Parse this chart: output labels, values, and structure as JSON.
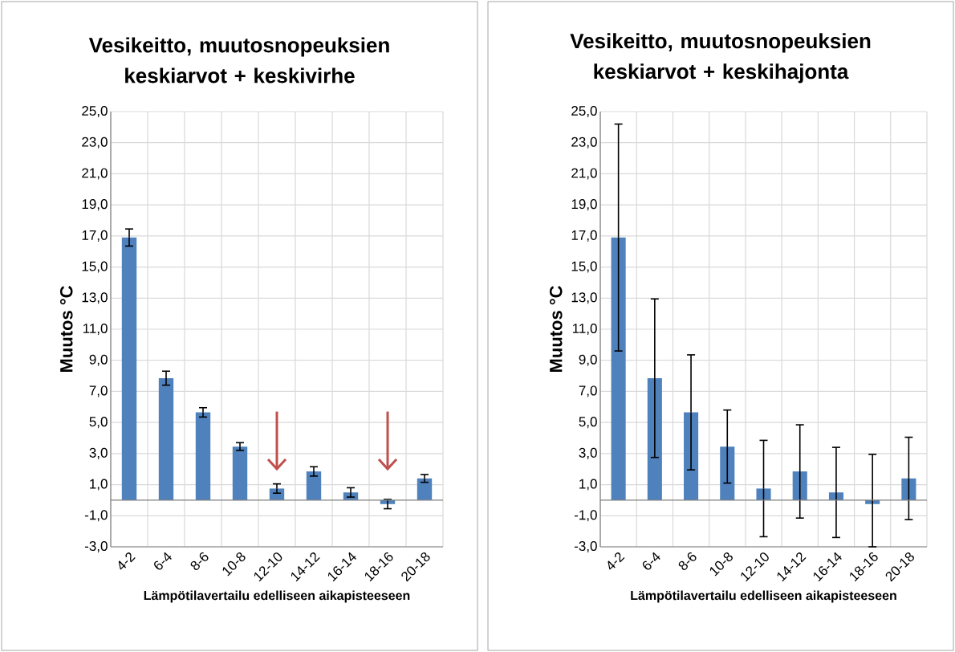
{
  "chart_data": [
    {
      "type": "bar",
      "title": "Vesikeitto, muutosnopeuksien keskiarvot + keskivirhe",
      "xlabel": "Lämpötilavertailu edelliseen aikapisteeseen",
      "ylabel": "Muutos °C",
      "categories": [
        "4-2",
        "6-4",
        "8-6",
        "10-8",
        "12-10",
        "14-12",
        "16-14",
        "18-16",
        "20-18"
      ],
      "values": [
        16.9,
        7.85,
        5.65,
        3.45,
        0.75,
        1.85,
        0.5,
        -0.25,
        1.4
      ],
      "errors": [
        0.55,
        0.45,
        0.3,
        0.25,
        0.3,
        0.3,
        0.3,
        0.3,
        0.25
      ],
      "color": "#4f81bd",
      "ylim": [
        -3,
        25
      ],
      "yticks": [
        {
          "value": -3,
          "label": "-3,0"
        },
        {
          "value": -1,
          "label": "-1,0"
        },
        {
          "value": 1,
          "label": "1,0"
        },
        {
          "value": 3,
          "label": "3,0"
        },
        {
          "value": 5,
          "label": "5,0"
        },
        {
          "value": 7,
          "label": "7,0"
        },
        {
          "value": 9,
          "label": "9,0"
        },
        {
          "value": 11,
          "label": "11,0"
        },
        {
          "value": 13,
          "label": "13,0"
        },
        {
          "value": 15,
          "label": "15,0"
        },
        {
          "value": 17,
          "label": "17,0"
        },
        {
          "value": 19,
          "label": "19,0"
        },
        {
          "value": 21,
          "label": "21,0"
        },
        {
          "value": 23,
          "label": "23,0"
        },
        {
          "value": 25,
          "label": "25,0"
        }
      ],
      "grid": true
    },
    {
      "type": "bar",
      "title": "Vesikeitto, muutosnopeuksien keskiarvot + keskihajonta",
      "xlabel": "Lämpötilavertailu edelliseen aikapisteeseen",
      "ylabel": "Muutos °C",
      "categories": [
        "4-2",
        "6-4",
        "8-6",
        "10-8",
        "12-10",
        "14-12",
        "16-14",
        "18-16",
        "20-18"
      ],
      "values": [
        16.9,
        7.85,
        5.65,
        3.45,
        0.75,
        1.85,
        0.5,
        -0.25,
        1.4
      ],
      "errors": [
        7.3,
        5.1,
        3.7,
        2.35,
        3.1,
        3.0,
        2.9,
        [
          -3.0,
          2.95
        ],
        2.65
      ],
      "color": "#4f81bd",
      "ylim": [
        -3,
        25
      ],
      "yticks": [
        {
          "value": -3,
          "label": "-3,0"
        },
        {
          "value": -1,
          "label": "-1,0"
        },
        {
          "value": 1,
          "label": "1,0"
        },
        {
          "value": 3,
          "label": "3,0"
        },
        {
          "value": 5,
          "label": "5,0"
        },
        {
          "value": 7,
          "label": "7,0"
        },
        {
          "value": 9,
          "label": "9,0"
        },
        {
          "value": 11,
          "label": "11,0"
        },
        {
          "value": 13,
          "label": "13,0"
        },
        {
          "value": 15,
          "label": "15,0"
        },
        {
          "value": 17,
          "label": "17,0"
        },
        {
          "value": 19,
          "label": "19,0"
        },
        {
          "value": 21,
          "label": "21,0"
        },
        {
          "value": 23,
          "label": "23,0"
        },
        {
          "value": 25,
          "label": "25,0"
        }
      ],
      "grid": true
    }
  ]
}
